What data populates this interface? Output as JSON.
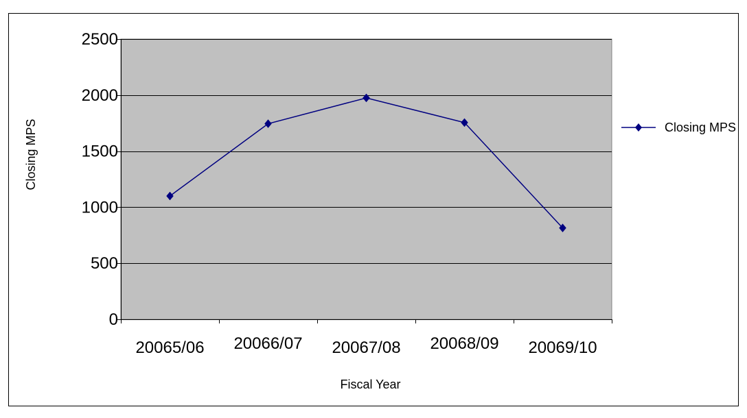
{
  "chart_data": {
    "type": "line",
    "categories": [
      "20065/06",
      "20066/07",
      "20067/08",
      "20068/09",
      "20069/10"
    ],
    "series": [
      {
        "name": "Closing MPS",
        "values": [
          1100,
          1745,
          1975,
          1755,
          815
        ]
      }
    ],
    "xlabel": "Fiscal Year",
    "ylabel": "Closing MPS",
    "ylim": [
      0,
      2500
    ],
    "yticks": [
      0,
      500,
      1000,
      1500,
      2000,
      2500
    ],
    "grid": true,
    "legend_position": "right",
    "colors": {
      "plot_background": "#c0c0c0",
      "series": "#000080",
      "grid": "#000000"
    }
  }
}
